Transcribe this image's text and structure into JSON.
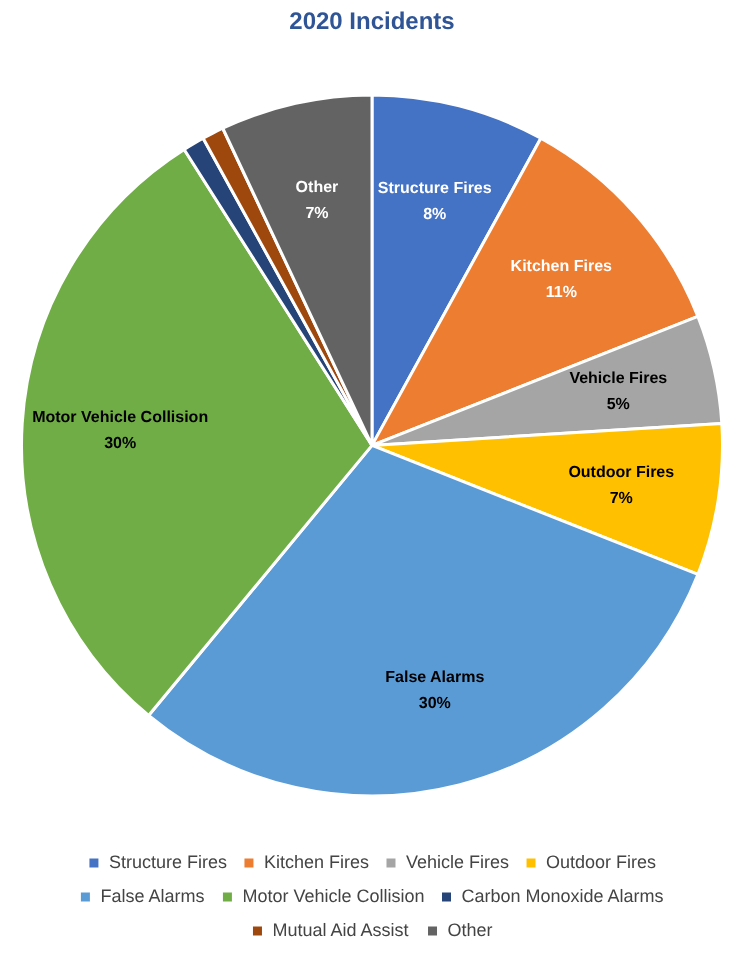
{
  "chart_data": {
    "type": "pie",
    "title": "2020 Incidents",
    "categories": [
      "Structure Fires",
      "Kitchen Fires",
      "Vehicle Fires",
      "Outdoor Fires",
      "False Alarms",
      "Motor Vehicle Collision",
      "Carbon Monoxide Alarms",
      "Mutual Aid Assist",
      "Other"
    ],
    "values": [
      8,
      11,
      5,
      7,
      30,
      30,
      1,
      1,
      7
    ],
    "value_labels": [
      "8%",
      "11%",
      "5%",
      "7%",
      "30%",
      "30%",
      null,
      null,
      "7%"
    ],
    "colors": [
      "#4472c4",
      "#ed7d31",
      "#a5a5a5",
      "#ffc000",
      "#5b9bd5",
      "#70ad47",
      "#264478",
      "#9e480e",
      "#636363"
    ],
    "legend": "bottom"
  }
}
